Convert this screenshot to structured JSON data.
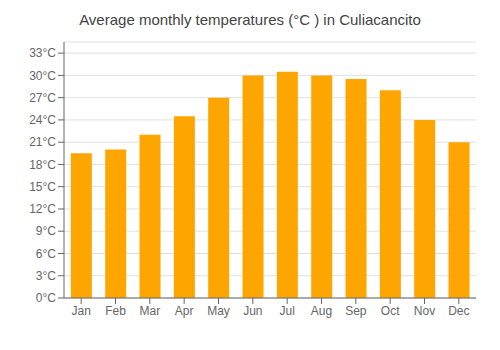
{
  "chart_data": {
    "type": "bar",
    "title": "Average monthly temperatures (°C ) in Culiacancito",
    "categories": [
      "Jan",
      "Feb",
      "Mar",
      "Apr",
      "May",
      "Jun",
      "Jul",
      "Aug",
      "Sep",
      "Oct",
      "Nov",
      "Dec"
    ],
    "values": [
      19.5,
      20.0,
      22.0,
      24.5,
      27.0,
      30.0,
      30.5,
      30.0,
      29.5,
      28.0,
      24.0,
      21.0
    ],
    "color": "#FFA500",
    "ylim": [
      0,
      34.5
    ],
    "yticks": [
      {
        "value": 0,
        "label": "0°C"
      },
      {
        "value": 3,
        "label": "3°C"
      },
      {
        "value": 6,
        "label": "6°C"
      },
      {
        "value": 9,
        "label": "9°C"
      },
      {
        "value": 12,
        "label": "12°C"
      },
      {
        "value": 15,
        "label": "15°C"
      },
      {
        "value": 18,
        "label": "18°C"
      },
      {
        "value": 21,
        "label": "21°C"
      },
      {
        "value": 24,
        "label": "24°C"
      },
      {
        "value": 27,
        "label": "27°C"
      },
      {
        "value": 30,
        "label": "30°C"
      },
      {
        "value": 33,
        "label": "33°C"
      }
    ],
    "grid": true
  }
}
